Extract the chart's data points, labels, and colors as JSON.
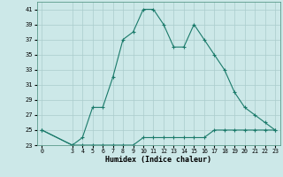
{
  "xlabel": "Humidex (Indice chaleur)",
  "x_ticks": [
    0,
    3,
    4,
    5,
    6,
    7,
    8,
    9,
    10,
    11,
    12,
    13,
    14,
    15,
    16,
    17,
    18,
    19,
    20,
    21,
    22,
    23
  ],
  "line1_x": [
    0,
    3,
    4,
    5,
    6,
    7,
    8,
    9,
    10,
    11,
    12,
    13,
    14,
    15,
    16,
    17,
    18,
    19,
    20,
    21,
    22,
    23
  ],
  "line1_y": [
    25,
    23,
    24,
    28,
    28,
    32,
    37,
    38,
    41,
    41,
    39,
    36,
    36,
    39,
    37,
    35,
    33,
    30,
    28,
    27,
    26,
    25
  ],
  "line2_x": [
    0,
    3,
    4,
    5,
    6,
    7,
    8,
    9,
    10,
    11,
    12,
    13,
    14,
    15,
    16,
    17,
    18,
    19,
    20,
    21,
    22,
    23
  ],
  "line2_y": [
    25,
    23,
    23,
    23,
    23,
    23,
    23,
    23,
    24,
    24,
    24,
    24,
    24,
    24,
    24,
    25,
    25,
    25,
    25,
    25,
    25,
    25
  ],
  "line_color": "#1a7a6a",
  "bg_color": "#cce8e8",
  "grid_color": "#aacccc",
  "ylim": [
    23,
    42
  ],
  "yticks": [
    23,
    25,
    27,
    29,
    31,
    33,
    35,
    37,
    39,
    41
  ],
  "xlim": [
    -0.5,
    23.5
  ]
}
